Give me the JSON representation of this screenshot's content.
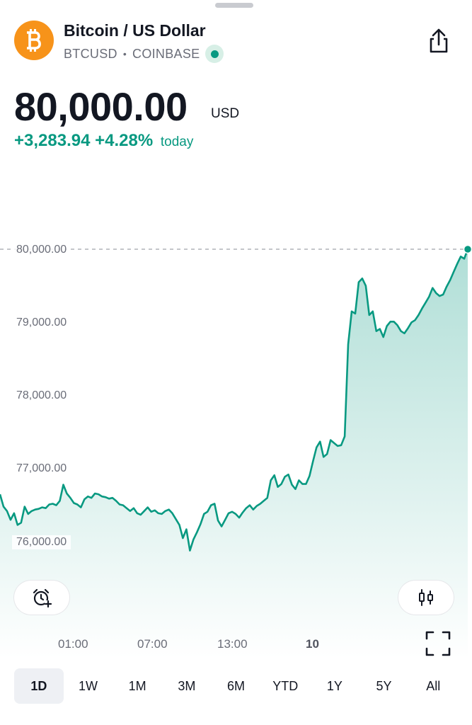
{
  "header": {
    "title": "Bitcoin / US Dollar",
    "ticker": "BTCUSD",
    "exchange": "COINBASE",
    "market_status": "open",
    "accent_color": "#f7931a"
  },
  "quote": {
    "price": "80,000.00",
    "currency": "USD",
    "change": "+3,283.94",
    "change_percent": "+4.28%",
    "period": "today",
    "change_color": "#089981"
  },
  "icons": {
    "logo": "bitcoin-icon",
    "share": "share-icon",
    "alert": "add-alert-icon",
    "chart_type": "candlestick-icon",
    "fullscreen": "fullscreen-icon"
  },
  "chart_data": {
    "type": "area",
    "y_ticks": [
      "80,000.00",
      "79,000.00",
      "78,000.00",
      "77,000.00",
      "76,000.00"
    ],
    "x_ticks": [
      "01:00",
      "07:00",
      "13:00",
      "10"
    ],
    "ylim": [
      75800,
      80100
    ],
    "last_price": 80000,
    "line_color": "#089981",
    "values": [
      76650,
      76480,
      76420,
      76300,
      76390,
      76230,
      76260,
      76480,
      76380,
      76420,
      76440,
      76450,
      76470,
      76460,
      76510,
      76520,
      76500,
      76560,
      76780,
      76660,
      76600,
      76530,
      76510,
      76470,
      76580,
      76620,
      76600,
      76660,
      76650,
      76620,
      76610,
      76590,
      76600,
      76560,
      76510,
      76500,
      76460,
      76420,
      76460,
      76390,
      76370,
      76420,
      76470,
      76410,
      76430,
      76390,
      76380,
      76420,
      76440,
      76390,
      76310,
      76230,
      76050,
      76170,
      75880,
      76030,
      76130,
      76240,
      76380,
      76410,
      76500,
      76520,
      76290,
      76210,
      76300,
      76390,
      76410,
      76380,
      76330,
      76400,
      76460,
      76500,
      76440,
      76490,
      76520,
      76560,
      76600,
      76840,
      76910,
      76750,
      76790,
      76890,
      76920,
      76780,
      76720,
      76840,
      76790,
      76790,
      76900,
      77100,
      77290,
      77370,
      77160,
      77200,
      77390,
      77350,
      77310,
      77320,
      77440,
      78700,
      79150,
      79120,
      79550,
      79600,
      79500,
      79100,
      79150,
      78880,
      78910,
      78800,
      78950,
      79010,
      79010,
      78960,
      78880,
      78850,
      78920,
      79000,
      79030,
      79100,
      79190,
      79270,
      79350,
      79470,
      79400,
      79360,
      79380,
      79490,
      79580,
      79690,
      79800,
      79900,
      79870,
      80000
    ],
    "x": [
      "00:00",
      "00:10",
      "00:20",
      "00:30",
      "00:40",
      "00:50",
      "01:00",
      "01:10",
      "01:20",
      "01:30",
      "01:40",
      "01:50",
      "02:00",
      "02:10",
      "02:20",
      "02:30",
      "02:40",
      "02:50",
      "03:00",
      "03:10",
      "03:20",
      "03:30",
      "03:40",
      "03:50",
      "04:00",
      "04:10",
      "04:20",
      "04:30",
      "04:40",
      "04:50",
      "05:00",
      "05:10",
      "05:20",
      "05:30",
      "05:40",
      "05:50",
      "06:00",
      "06:10",
      "06:20",
      "06:30",
      "06:40",
      "06:50",
      "07:00",
      "07:10",
      "07:20",
      "07:30",
      "07:40",
      "07:50",
      "08:00",
      "08:10",
      "08:20",
      "08:30",
      "08:40",
      "08:50",
      "09:00",
      "09:10",
      "09:20",
      "09:30",
      "09:40",
      "09:50",
      "10:00",
      "10:10",
      "10:20",
      "10:30",
      "10:40",
      "10:50",
      "11:00",
      "11:10",
      "11:20",
      "11:30",
      "11:40",
      "11:50",
      "12:00",
      "12:10",
      "12:20",
      "12:30",
      "12:40",
      "12:50",
      "13:00",
      "13:10",
      "13:20",
      "13:30",
      "13:40",
      "13:50",
      "14:00",
      "14:10",
      "14:20",
      "14:30",
      "14:40",
      "14:50",
      "15:00",
      "15:10",
      "15:20",
      "15:30",
      "15:40",
      "15:50",
      "16:00",
      "16:10",
      "16:20",
      "16:30",
      "16:40",
      "16:50",
      "17:00",
      "17:10",
      "17:20",
      "17:30",
      "17:40",
      "17:50",
      "18:00",
      "18:10",
      "18:20",
      "18:30",
      "18:40",
      "18:50",
      "19:00",
      "19:10",
      "19:20",
      "19:30",
      "19:40",
      "19:50",
      "20:00",
      "20:10",
      "20:20",
      "20:30",
      "20:40",
      "20:50",
      "21:00",
      "21:10",
      "21:20",
      "21:30",
      "21:40",
      "21:50",
      "22:00",
      "22:10"
    ]
  },
  "ranges": {
    "items": [
      "1D",
      "1W",
      "1M",
      "3M",
      "6M",
      "YTD",
      "1Y",
      "5Y",
      "All"
    ],
    "selected": "1D"
  }
}
